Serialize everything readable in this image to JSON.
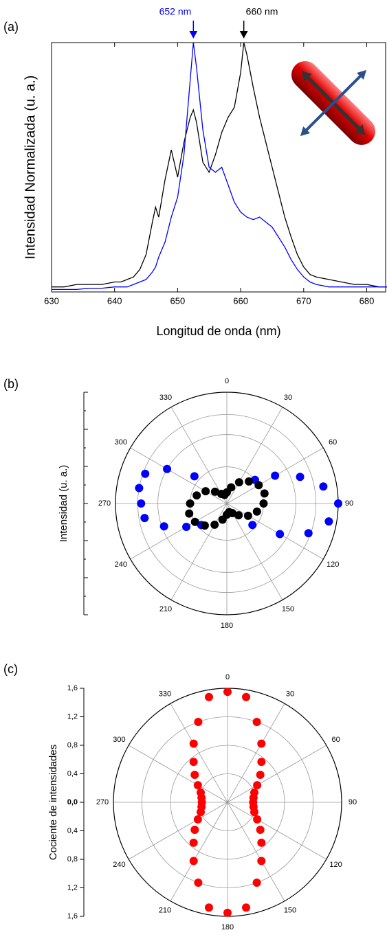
{
  "chart_data": [
    {
      "type": "line",
      "panel_label": "(a)",
      "ylabel": "Intensidad Normalizada (u. a.)",
      "xlabel": "Longitud de onda (nm)",
      "x": [
        630,
        632,
        634,
        636,
        638,
        640,
        641,
        642,
        643,
        644,
        645,
        646,
        646.5,
        647,
        648,
        649,
        650,
        651,
        652,
        652.5,
        653,
        654,
        655,
        656,
        657,
        658,
        659,
        660,
        660.5,
        661,
        662,
        663,
        664,
        665,
        666,
        667,
        668,
        669,
        670,
        671,
        672,
        674,
        676,
        678,
        680,
        682,
        685
      ],
      "series": [
        {
          "color": "#000000",
          "values": [
            0.02,
            0.02,
            0.03,
            0.03,
            0.03,
            0.04,
            0.04,
            0.05,
            0.06,
            0.09,
            0.15,
            0.28,
            0.34,
            0.3,
            0.45,
            0.57,
            0.46,
            0.6,
            0.7,
            0.73,
            0.68,
            0.52,
            0.48,
            0.55,
            0.64,
            0.7,
            0.74,
            0.88,
            1.0,
            0.95,
            0.82,
            0.7,
            0.6,
            0.5,
            0.4,
            0.3,
            0.22,
            0.15,
            0.1,
            0.07,
            0.06,
            0.05,
            0.04,
            0.03,
            0.03,
            0.02,
            0.02
          ]
        },
        {
          "color": "#0000ff",
          "values": [
            0.01,
            0.01,
            0.01,
            0.015,
            0.015,
            0.02,
            0.02,
            0.02,
            0.03,
            0.04,
            0.05,
            0.08,
            0.1,
            0.14,
            0.2,
            0.3,
            0.38,
            0.55,
            0.85,
            1.0,
            0.9,
            0.65,
            0.5,
            0.48,
            0.5,
            0.43,
            0.36,
            0.32,
            0.31,
            0.3,
            0.29,
            0.3,
            0.28,
            0.26,
            0.22,
            0.18,
            0.13,
            0.09,
            0.06,
            0.04,
            0.03,
            0.02,
            0.02,
            0.02,
            0.02,
            0.02,
            0.02
          ]
        }
      ],
      "annotations": [
        {
          "text": "652 nm",
          "x": 652.5,
          "color": "#0000ff"
        },
        {
          "text": "660 nm",
          "x": 660.5,
          "color": "#000000"
        }
      ],
      "xlim": [
        630,
        683
      ],
      "ylim": [
        0,
        1
      ],
      "xticks": [
        630,
        640,
        650,
        660,
        670,
        680
      ]
    },
    {
      "type": "polar",
      "panel_label": "(b)",
      "ylabel": "Intensidad (u. a.)",
      "thetaticks": [
        0,
        30,
        60,
        90,
        120,
        150,
        180,
        210,
        240,
        270,
        300,
        330
      ],
      "rlim": [
        0,
        1
      ],
      "series": [
        {
          "color": "#0000ff",
          "theta": [
            50,
            60,
            70,
            80,
            90,
            100,
            110,
            120,
            130,
            230,
            240,
            250,
            260,
            270,
            280,
            290,
            300,
            310
          ],
          "r": [
            0.33,
            0.5,
            0.7,
            0.88,
            1.0,
            0.93,
            0.78,
            0.55,
            0.3,
            0.3,
            0.42,
            0.6,
            0.75,
            0.77,
            0.8,
            0.78,
            0.62,
            0.38
          ]
        },
        {
          "color": "#000000",
          "theta": [
            0,
            15,
            30,
            45,
            60,
            75,
            90,
            105,
            120,
            135,
            150,
            165,
            180,
            195,
            210,
            225,
            240,
            255,
            270,
            285,
            300,
            315,
            330,
            345
          ],
          "r": [
            0.1,
            0.15,
            0.22,
            0.28,
            0.33,
            0.35,
            0.33,
            0.28,
            0.22,
            0.15,
            0.1,
            0.08,
            0.1,
            0.15,
            0.22,
            0.28,
            0.33,
            0.35,
            0.33,
            0.28,
            0.22,
            0.15,
            0.1,
            0.08
          ]
        }
      ]
    },
    {
      "type": "polar",
      "panel_label": "(c)",
      "ylabel": "Cociente de intensidades",
      "thetaticks": [
        0,
        30,
        60,
        90,
        120,
        150,
        180,
        210,
        240,
        270,
        300,
        330
      ],
      "rlim": [
        0,
        1.6
      ],
      "ylim": [
        -1.6,
        1.6
      ],
      "yticks": [
        {
          "value": 1.6,
          "label": "1,6"
        },
        {
          "value": 1.2,
          "label": "1,2"
        },
        {
          "value": 0.8,
          "label": "0,8"
        },
        {
          "value": 0.4,
          "label": "0,4"
        },
        {
          "value": 0,
          "label": "0,0"
        },
        {
          "value": -0.4,
          "label": "0,4"
        },
        {
          "value": -0.8,
          "label": "0,8"
        },
        {
          "value": -1.2,
          "label": "1,2"
        },
        {
          "value": -1.6,
          "label": "1,6"
        }
      ],
      "series": [
        {
          "color": "#ff0000",
          "theta": [
            0,
            10,
            20,
            30,
            40,
            50,
            60,
            70,
            80,
            90,
            100,
            110,
            120,
            130,
            140,
            150,
            160,
            170,
            180,
            190,
            200,
            210,
            220,
            230,
            240,
            250,
            260,
            270,
            280,
            290,
            300,
            310,
            320,
            330,
            340,
            350
          ],
          "r": [
            1.55,
            1.5,
            1.2,
            0.95,
            0.74,
            0.6,
            0.48,
            0.4,
            0.37,
            0.36,
            0.37,
            0.4,
            0.48,
            0.6,
            0.74,
            0.95,
            1.2,
            1.5,
            1.55,
            1.5,
            1.2,
            0.95,
            0.74,
            0.6,
            0.48,
            0.4,
            0.37,
            0.36,
            0.37,
            0.4,
            0.48,
            0.6,
            0.74,
            0.95,
            1.2,
            1.5
          ]
        }
      ]
    }
  ]
}
